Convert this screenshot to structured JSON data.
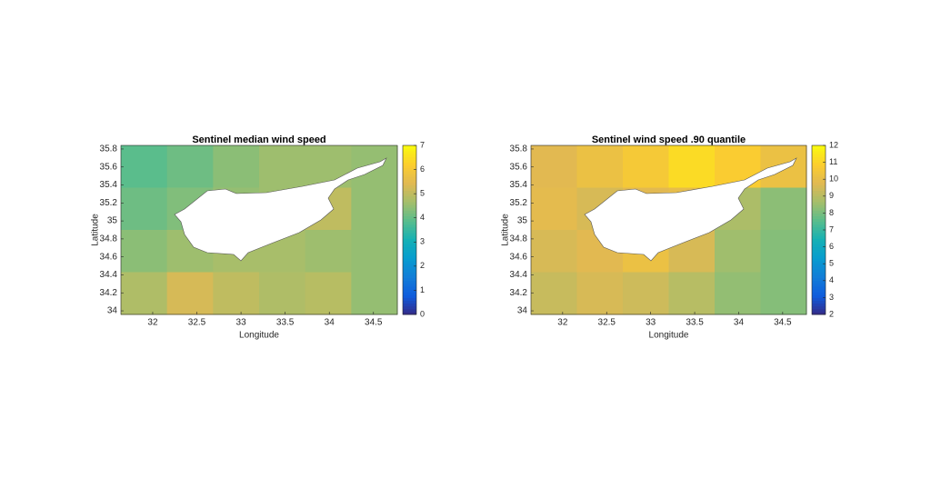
{
  "chart_data": [
    {
      "type": "heatmap",
      "title": "Sentinel median wind speed",
      "xlabel": "Longitude",
      "ylabel": "Latitude",
      "xlim": [
        31.64,
        34.77
      ],
      "ylim": [
        33.96,
        35.84
      ],
      "xticks": [
        32,
        32.5,
        33,
        33.5,
        34,
        34.5
      ],
      "yticks": [
        34,
        34.2,
        34.4,
        34.6,
        34.8,
        35,
        35.2,
        35.4,
        35.6,
        35.8
      ],
      "clim": [
        0,
        7
      ],
      "cticks": [
        0,
        1,
        2,
        3,
        4,
        5,
        6,
        7
      ],
      "z": [
        [
          3.9,
          4.1,
          4.4,
          4.6,
          4.6,
          4.5
        ],
        [
          4.1,
          4.3,
          4.5,
          4.6,
          5.0,
          4.5
        ],
        [
          4.4,
          4.6,
          4.7,
          4.7,
          4.6,
          4.5
        ],
        [
          4.8,
          5.3,
          5.0,
          4.8,
          4.9,
          4.5
        ]
      ]
    },
    {
      "type": "heatmap",
      "title": "Sentinel wind speed .90 quantile",
      "xlabel": "Longitude",
      "ylabel": "Latitude",
      "xlim": [
        31.64,
        34.77
      ],
      "ylim": [
        33.96,
        35.84
      ],
      "xticks": [
        32,
        32.5,
        33,
        33.5,
        34,
        34.5
      ],
      "yticks": [
        34,
        34.2,
        34.4,
        34.6,
        34.8,
        35,
        35.2,
        35.4,
        35.6,
        35.8
      ],
      "clim": [
        2,
        12
      ],
      "cticks": [
        2,
        3,
        4,
        5,
        6,
        7,
        8,
        9,
        10,
        11,
        12
      ],
      "z": [
        [
          9.8,
          10.2,
          10.6,
          11.2,
          10.8,
          10.2
        ],
        [
          9.9,
          9.6,
          9.8,
          10.0,
          8.8,
          8.3
        ],
        [
          9.6,
          9.8,
          10.2,
          9.6,
          8.6,
          8.2
        ],
        [
          9.3,
          9.6,
          9.4,
          9.0,
          8.4,
          8.2
        ]
      ]
    }
  ]
}
